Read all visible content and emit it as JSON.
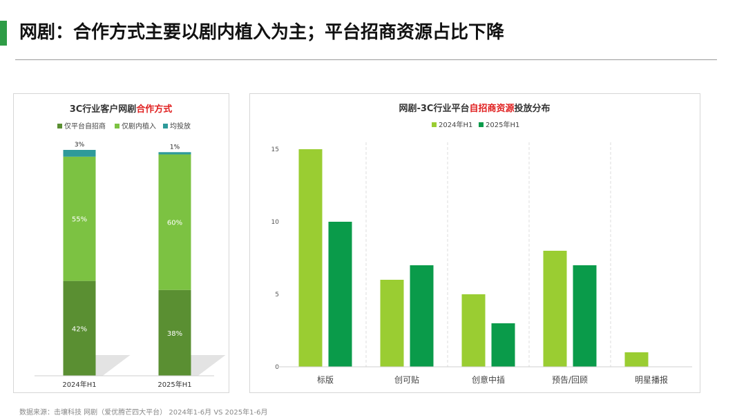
{
  "page_title": "网剧：合作方式主要以剧内植入为主；平台招商资源占比下降",
  "source_note": "数据来源：击壤科技 网剧（爱优腾芒四大平台） 2024年1-6月 VS 2025年1-6月",
  "colors": {
    "accent": "#2e9c46",
    "highlight": "#e02020",
    "dark_green": "#5a8f32",
    "light_green": "#7cc242",
    "teal": "#2e9a9a",
    "lime": "#9acd32",
    "green": "#0a9b4a"
  },
  "chart_data": [
    {
      "type": "bar",
      "stacked": true,
      "normalized": true,
      "title": "3C行业客户网剧合作方式",
      "title_plain": "3C行业客户网剧",
      "title_highlight": "合作方式",
      "categories": [
        "2024年H1",
        "2025年H1"
      ],
      "series": [
        {
          "name": "仅平台自招商",
          "values": [
            42,
            38
          ],
          "labels": [
            "42%",
            "38%"
          ],
          "color": "#5a8f32"
        },
        {
          "name": "仅剧内植入",
          "values": [
            55,
            60
          ],
          "labels": [
            "55%",
            "60%"
          ],
          "color": "#7cc242"
        },
        {
          "name": "均投放",
          "values": [
            3,
            1
          ],
          "labels": [
            "3%",
            "1%"
          ],
          "color": "#2e9a9a"
        }
      ],
      "legend_position": "top",
      "grid": false
    },
    {
      "type": "bar",
      "title": "网剧-3C行业平台自招商资源投放分布",
      "title_plain_1": "网剧-3C行业平台",
      "title_highlight": "自招商资源",
      "title_plain_2": "投放分布",
      "categories": [
        "标版",
        "创可贴",
        "创意中插",
        "预告/回顾",
        "明星播报"
      ],
      "series": [
        {
          "name": "2024年H1",
          "values": [
            15,
            6,
            5,
            8,
            1
          ],
          "color": "#9acd32"
        },
        {
          "name": "2025年H1",
          "values": [
            10,
            7,
            3,
            7,
            0
          ],
          "color": "#0a9b4a"
        }
      ],
      "y_ticks": [
        "0",
        "5",
        "10",
        "15"
      ],
      "ylim": [
        0,
        15
      ],
      "legend_position": "top",
      "grid": "vertical-dashed"
    }
  ]
}
